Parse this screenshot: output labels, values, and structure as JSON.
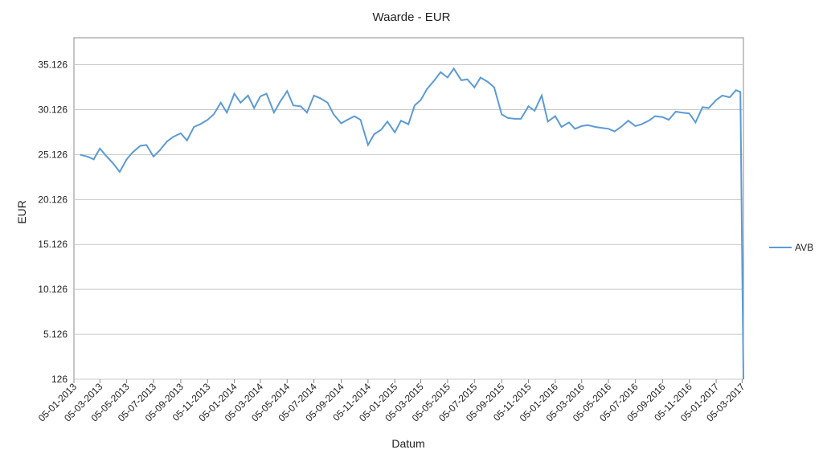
{
  "chart_data": {
    "type": "line",
    "title": "Waarde - EUR",
    "x_label": "Datum",
    "y_label": "EUR",
    "x": [
      "19-01-2013",
      "05-02-2013",
      "19-02-2013",
      "05-03-2013",
      "19-03-2013",
      "05-04-2013",
      "19-04-2013",
      "05-05-2013",
      "19-05-2013",
      "05-06-2013",
      "19-06-2013",
      "05-07-2013",
      "19-07-2013",
      "05-08-2013",
      "19-08-2013",
      "05-09-2013",
      "19-09-2013",
      "05-10-2013",
      "19-10-2013",
      "05-11-2013",
      "19-11-2013",
      "05-12-2013",
      "19-12-2013",
      "05-01-2014",
      "19-01-2014",
      "05-02-2014",
      "19-02-2014",
      "05-03-2014",
      "19-03-2014",
      "05-04-2014",
      "19-04-2014",
      "05-05-2014",
      "19-05-2014",
      "05-06-2014",
      "19-06-2014",
      "05-07-2014",
      "19-07-2014",
      "05-08-2014",
      "19-08-2014",
      "05-09-2014",
      "19-09-2014",
      "05-10-2014",
      "19-10-2014",
      "05-11-2014",
      "19-11-2014",
      "05-12-2014",
      "19-12-2014",
      "05-01-2015",
      "19-01-2015",
      "05-02-2015",
      "19-02-2015",
      "05-03-2015",
      "19-03-2015",
      "05-04-2015",
      "19-04-2015",
      "05-05-2015",
      "19-05-2015",
      "05-06-2015",
      "19-06-2015",
      "05-07-2015",
      "19-07-2015",
      "05-08-2015",
      "19-08-2015",
      "05-09-2015",
      "19-09-2015",
      "05-10-2015",
      "19-10-2015",
      "05-11-2015",
      "19-11-2015",
      "05-12-2015",
      "19-12-2015",
      "05-01-2016",
      "19-01-2016",
      "05-02-2016",
      "19-02-2016",
      "05-03-2016",
      "19-03-2016",
      "05-04-2016",
      "19-04-2016",
      "05-05-2016",
      "19-05-2016",
      "05-06-2016",
      "19-06-2016",
      "05-07-2016",
      "19-07-2016",
      "05-08-2016",
      "19-08-2016",
      "05-09-2016",
      "19-09-2016",
      "05-10-2016",
      "19-10-2016",
      "05-11-2016",
      "19-11-2016",
      "05-12-2016",
      "19-12-2016",
      "05-01-2017",
      "19-01-2017",
      "05-02-2017",
      "19-02-2017",
      "01-03-2017",
      "08-03-2017"
    ],
    "series": [
      {
        "name": "AVB",
        "color": "#5b9bd5",
        "values": [
          25100,
          24900,
          24600,
          25800,
          25000,
          24100,
          23200,
          24600,
          25400,
          26100,
          26200,
          24900,
          25600,
          26600,
          27100,
          27500,
          26700,
          28200,
          28500,
          29000,
          29600,
          30900,
          29800,
          31900,
          30900,
          31700,
          30300,
          31600,
          31900,
          29800,
          31000,
          32200,
          30600,
          30500,
          29800,
          31700,
          31400,
          30900,
          29600,
          28600,
          29000,
          29400,
          29000,
          26200,
          27400,
          27900,
          28800,
          27600,
          28900,
          28500,
          30600,
          31200,
          32400,
          33400,
          34300,
          33700,
          34700,
          33400,
          33500,
          32600,
          33700,
          33200,
          32600,
          29600,
          29200,
          29100,
          29100,
          30500,
          30000,
          31700,
          28800,
          29400,
          28200,
          28700,
          28000,
          28300,
          28400,
          28200,
          28100,
          28000,
          27700,
          28300,
          28900,
          28300,
          28500,
          28900,
          29400,
          29300,
          29000,
          29900,
          29800,
          29700,
          28700,
          30400,
          30300,
          31200,
          31700,
          31500,
          32300,
          32100,
          126
        ]
      }
    ],
    "xlim": [
      "05-01-2013",
      "08-03-2017"
    ],
    "xticks": [
      "05-01-2013",
      "05-03-2013",
      "05-05-2013",
      "05-07-2013",
      "05-09-2013",
      "05-11-2013",
      "05-01-2014",
      "05-03-2014",
      "05-05-2014",
      "05-07-2014",
      "05-09-2014",
      "05-11-2014",
      "05-01-2015",
      "05-03-2015",
      "05-05-2015",
      "05-07-2015",
      "05-09-2015",
      "05-11-2015",
      "05-01-2016",
      "05-03-2016",
      "05-05-2016",
      "05-07-2016",
      "05-09-2016",
      "05-11-2016",
      "05-01-2017",
      "05-03-2017"
    ],
    "ylim": [
      126,
      38126
    ],
    "yticks": [
      126,
      {
        "value": 5126,
        "label": "5.126"
      },
      {
        "value": 10126,
        "label": "10.126"
      },
      {
        "value": 15126,
        "label": "15.126"
      },
      {
        "value": 20126,
        "label": "20.126"
      },
      {
        "value": 25126,
        "label": "25.126"
      },
      {
        "value": 30126,
        "label": "30.126"
      },
      {
        "value": 35126,
        "label": "35.126"
      }
    ],
    "grid": true,
    "legend": "right"
  }
}
